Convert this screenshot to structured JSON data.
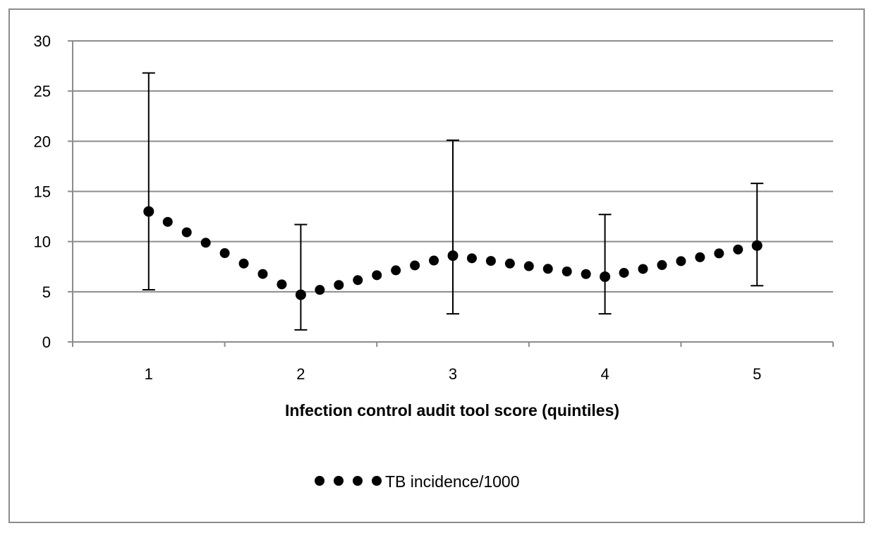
{
  "chart_data": {
    "type": "line",
    "title": "",
    "xlabel": "Infection control audit tool score (quintiles)",
    "ylabel": "",
    "x_categories": [
      "1",
      "2",
      "3",
      "4",
      "5"
    ],
    "y_ticks": [
      "0",
      "5",
      "10",
      "15",
      "20",
      "25",
      "30"
    ],
    "ylim": [
      0,
      30
    ],
    "grid": true,
    "legend_position": "bottom",
    "series": [
      {
        "name": "TB incidence/1000",
        "line_style": "round-dotted",
        "color": "#000000",
        "values": [
          13.0,
          4.7,
          8.6,
          6.5,
          9.6
        ],
        "error_low": [
          5.2,
          1.2,
          2.8,
          2.8,
          5.6
        ],
        "error_high": [
          26.8,
          11.7,
          20.1,
          12.7,
          15.8
        ]
      }
    ]
  }
}
